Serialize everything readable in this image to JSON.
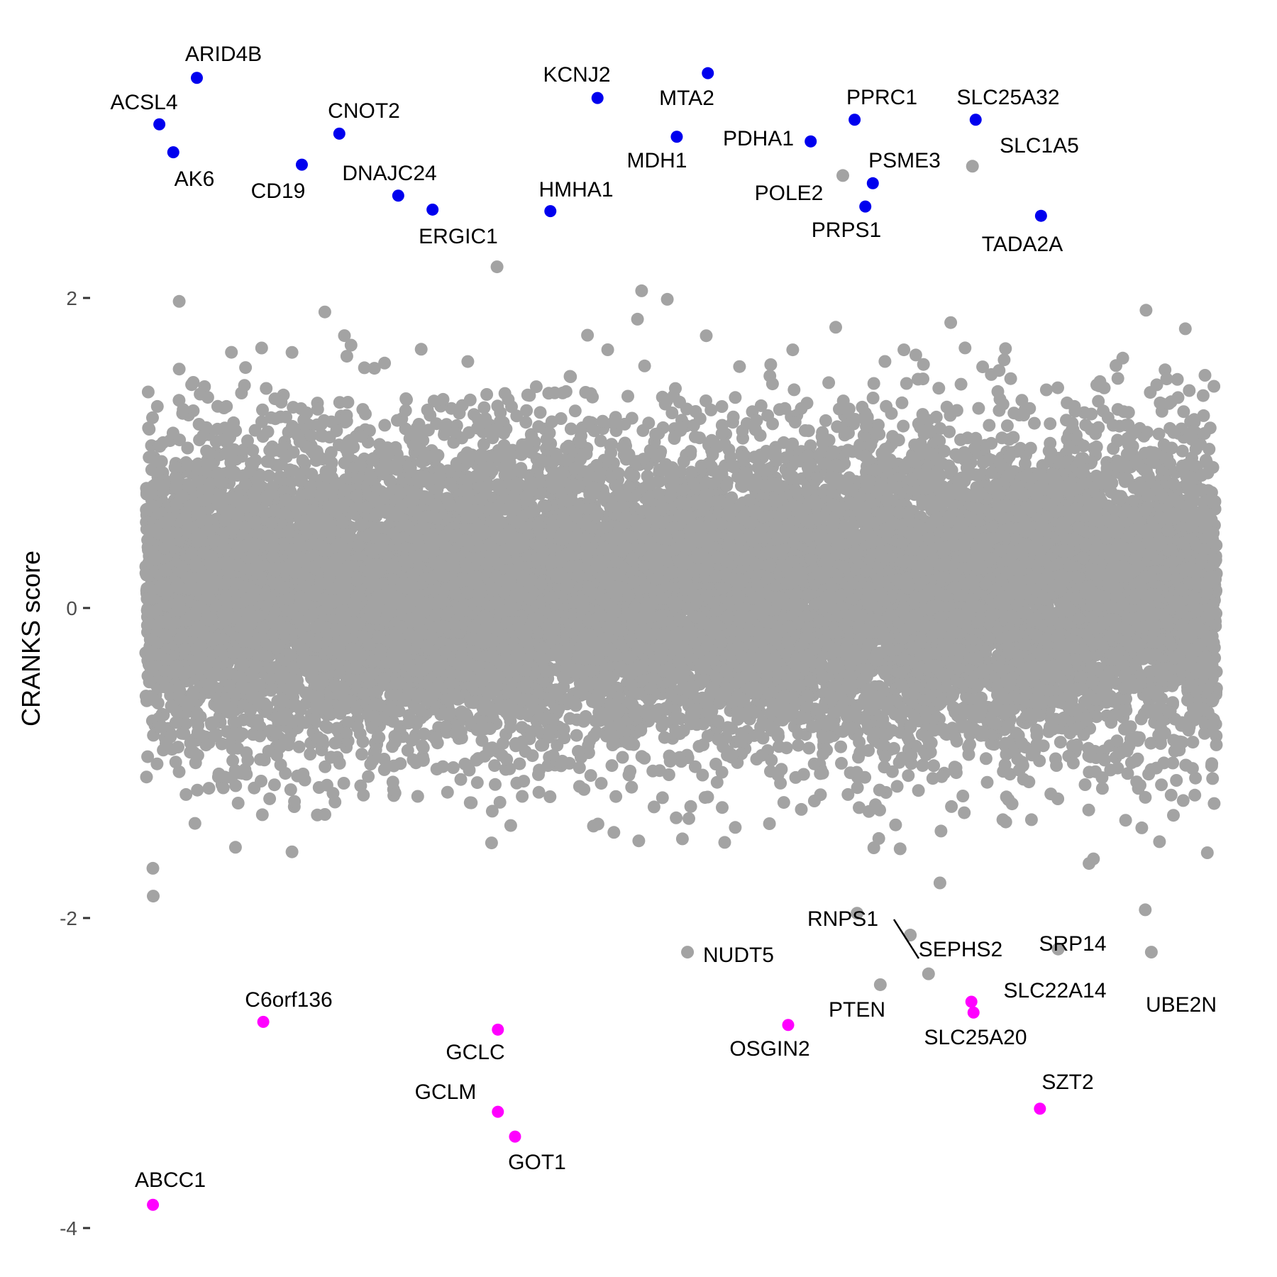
{
  "chart_data": {
    "type": "scatter",
    "title": "",
    "xlabel": "",
    "ylabel": "CRANKS score",
    "ylim": [
      -4.1,
      3.7
    ],
    "xlim": [
      0,
      1
    ],
    "y_ticks": [
      {
        "value": 2,
        "label": "2"
      },
      {
        "value": 0,
        "label": "0"
      },
      {
        "value": -2,
        "label": "-2"
      },
      {
        "value": -4,
        "label": "-4"
      }
    ],
    "grid": false,
    "legend": "none",
    "colors": {
      "background_points": "#a3a3a3",
      "positive_hits": "#0000ee",
      "negative_hits": "#ff00ff",
      "leader": "#000000"
    },
    "background_points": {
      "n_points": 16000,
      "description_distribution": "normal",
      "mean": 0.1,
      "sd": 0.5,
      "y_min": -2.1,
      "y_max": 2.6
    },
    "positive_hits": [
      {
        "gene": "ARID4B",
        "x": 0.048,
        "y": 3.42
      },
      {
        "gene": "ACSL4",
        "x": 0.013,
        "y": 3.12
      },
      {
        "gene": "AK6",
        "x": 0.026,
        "y": 2.94
      },
      {
        "gene": "CNOT2",
        "x": 0.181,
        "y": 3.06
      },
      {
        "gene": "CD19",
        "x": 0.146,
        "y": 2.86
      },
      {
        "gene": "DNAJC24",
        "x": 0.236,
        "y": 2.66
      },
      {
        "gene": "ERGIC1",
        "x": 0.268,
        "y": 2.57
      },
      {
        "gene": "HMHA1",
        "x": 0.378,
        "y": 2.56
      },
      {
        "gene": "KCNJ2",
        "x": 0.422,
        "y": 3.29
      },
      {
        "gene": "MTA2",
        "x": 0.525,
        "y": 3.45
      },
      {
        "gene": "MDH1",
        "x": 0.496,
        "y": 3.04
      },
      {
        "gene": "PDHA1",
        "x": 0.621,
        "y": 3.01
      },
      {
        "gene": "PPRC1",
        "x": 0.662,
        "y": 3.15
      },
      {
        "gene": "PSME3",
        "x": 0.679,
        "y": 2.74
      },
      {
        "gene": "PRPS1",
        "x": 0.672,
        "y": 2.59
      },
      {
        "gene": "SLC25A32",
        "x": 0.775,
        "y": 3.15
      },
      {
        "gene": "TADA2A",
        "x": 0.836,
        "y": 2.53
      }
    ],
    "negative_hits": [
      {
        "gene": "C6orf136",
        "x": 0.11,
        "y": -2.67
      },
      {
        "gene": "GCLC",
        "x": 0.329,
        "y": -2.72
      },
      {
        "gene": "GCLM",
        "x": 0.329,
        "y": -3.25
      },
      {
        "gene": "GOT1",
        "x": 0.345,
        "y": -3.41
      },
      {
        "gene": "OSGIN2",
        "x": 0.6,
        "y": -2.69
      },
      {
        "gene": "SLC22A14",
        "x": 0.771,
        "y": -2.54
      },
      {
        "gene": "SLC25A20",
        "x": 0.773,
        "y": -2.61
      },
      {
        "gene": "SZT2",
        "x": 0.835,
        "y": -3.23
      },
      {
        "gene": "ABCC1",
        "x": 0.007,
        "y": -3.85
      }
    ],
    "labeled_background": [
      {
        "gene": "SLC1A5",
        "x": 0.772,
        "y": 2.85
      },
      {
        "gene": "POLE2",
        "x": 0.651,
        "y": 2.79
      },
      {
        "gene": "RNPS1",
        "x": 0.714,
        "y": -2.11
      },
      {
        "gene": "SEPHS2",
        "x": 0.731,
        "y": -2.36
      },
      {
        "gene": "NUDT5",
        "x": 0.506,
        "y": -2.22
      },
      {
        "gene": "PTEN",
        "x": 0.686,
        "y": -2.43
      },
      {
        "gene": "SRP14",
        "x": 0.852,
        "y": -2.2
      },
      {
        "gene": "UBE2N",
        "x": 0.939,
        "y": -2.22
      }
    ]
  }
}
